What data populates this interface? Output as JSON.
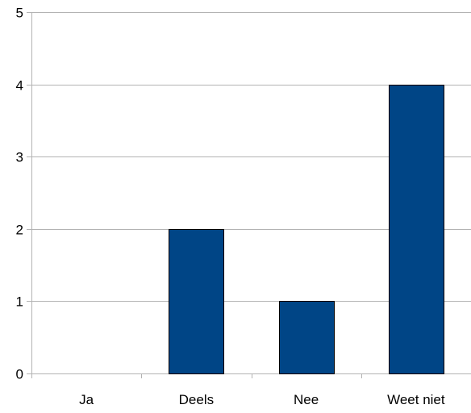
{
  "chart_data": {
    "type": "bar",
    "categories": [
      "Ja",
      "Deels",
      "Nee",
      "Weet niet"
    ],
    "values": [
      0,
      2,
      1,
      4
    ],
    "title": "",
    "xlabel": "",
    "ylabel": "",
    "ylim": [
      0,
      5
    ],
    "yticks": [
      0,
      1,
      2,
      3,
      4,
      5
    ],
    "grid": true,
    "legend": "none"
  },
  "colors": {
    "bar": "#004586",
    "bar_outline": "#000000",
    "grid": "#b3b3b3",
    "axis": "#b3b3b3"
  }
}
